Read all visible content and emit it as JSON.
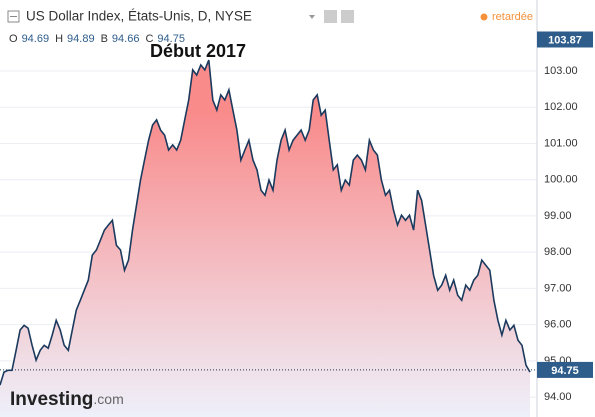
{
  "chart_data": {
    "type": "area-line",
    "title": "US Dollar Index, États-Unis, D, NYSE",
    "status": "retardée",
    "ohlc": [
      {
        "label": "O",
        "value": 94.69
      },
      {
        "label": "H",
        "value": 94.89
      },
      {
        "label": "B",
        "value": 94.66
      },
      {
        "label": "C",
        "value": 94.75
      }
    ],
    "annotation": "Début 2017",
    "logo": [
      "Investing",
      ".com"
    ],
    "line_color": "#1b3a5e",
    "fill_colors": [
      "#f98b8b",
      "#eef0fa"
    ],
    "marker_color": "#2e5d8c",
    "grid": true,
    "ylim": [
      93.45,
      104.96
    ],
    "yticks": [
      {
        "value": 94,
        "label": "94.00"
      },
      {
        "value": 95,
        "label": "95.00"
      },
      {
        "value": 96,
        "label": "96.00"
      },
      {
        "value": 97,
        "label": "97.00"
      },
      {
        "value": 98,
        "label": "98.00"
      },
      {
        "value": 99,
        "label": "99.00"
      },
      {
        "value": 100,
        "label": "100.00"
      },
      {
        "value": 101,
        "label": "101.00"
      },
      {
        "value": 102,
        "label": "102.00"
      },
      {
        "value": 103,
        "label": "103.00"
      }
    ],
    "top_marker": 103.87,
    "last_price": 94.75,
    "values": [
      94.33,
      94.69,
      94.74,
      94.74,
      95.29,
      95.85,
      95.98,
      95.9,
      95.43,
      95.02,
      95.29,
      95.43,
      95.35,
      95.71,
      96.12,
      95.85,
      95.43,
      95.29,
      95.85,
      96.4,
      96.67,
      96.95,
      97.23,
      97.92,
      98.06,
      98.33,
      98.61,
      98.75,
      98.88,
      98.19,
      98.06,
      97.5,
      97.78,
      98.61,
      99.3,
      99.99,
      100.54,
      101.09,
      101.51,
      101.65,
      101.37,
      101.23,
      100.82,
      100.96,
      100.82,
      101.09,
      101.65,
      102.2,
      103.03,
      102.89,
      103.17,
      103.03,
      103.3,
      102.2,
      101.92,
      102.34,
      102.2,
      102.48,
      101.92,
      101.37,
      100.54,
      100.82,
      101.09,
      100.54,
      100.27,
      99.71,
      99.57,
      99.99,
      99.71,
      100.54,
      101.09,
      101.37,
      100.82,
      101.09,
      101.23,
      101.37,
      101.09,
      101.37,
      102.2,
      102.34,
      101.78,
      101.92,
      101.09,
      100.27,
      100.41,
      99.71,
      99.99,
      99.85,
      100.54,
      100.68,
      100.54,
      100.27,
      101.09,
      100.82,
      100.68,
      99.99,
      99.57,
      99.71,
      99.16,
      98.75,
      99.02,
      98.88,
      99.02,
      98.61,
      99.71,
      99.43,
      98.75,
      98.06,
      97.36,
      96.95,
      97.09,
      97.36,
      96.95,
      97.23,
      96.81,
      96.67,
      97.09,
      96.95,
      97.23,
      97.36,
      97.78,
      97.64,
      97.5,
      96.67,
      96.12,
      95.71,
      96.12,
      95.85,
      95.98,
      95.57,
      95.43,
      94.88,
      94.69
    ]
  }
}
